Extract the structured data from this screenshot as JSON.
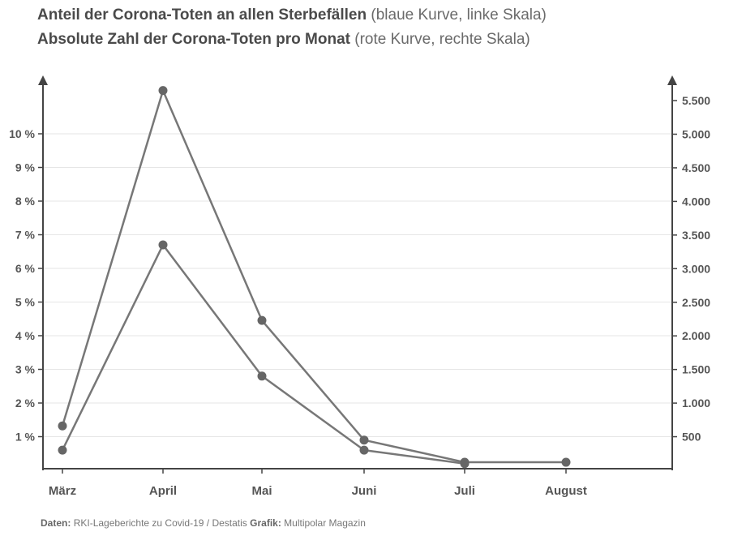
{
  "title": {
    "line1_bold": "Anteil der Corona-Toten an allen Sterbefällen",
    "line1_note": "(blaue Kurve, linke Skala)",
    "line2_bold": "Absolute Zahl der Corona-Toten pro Monat",
    "line2_note": "(rote Kurve, rechte Skala)"
  },
  "footer": {
    "data_label": "Daten:",
    "data_value": "RKI-Lageberichte zu Covid-19 / Destatis",
    "graphic_label": "Grafik:",
    "graphic_value": "Multipolar Magazin"
  },
  "colors": {
    "line": "#777777",
    "marker": "#666666",
    "grid": "#e6e6e6",
    "axis": "#444444"
  },
  "chart_data": {
    "type": "line",
    "categories": [
      "März",
      "April",
      "Mai",
      "Juni",
      "Juli",
      "August"
    ],
    "left_axis": {
      "ylim": [
        0,
        11.5
      ],
      "ticks": [
        1,
        2,
        3,
        4,
        5,
        6,
        7,
        8,
        9,
        10
      ],
      "tick_labels": [
        "1 %",
        "2 %",
        "3 %",
        "4 %",
        "5 %",
        "6 %",
        "7 %",
        "8 %",
        "9 %",
        "10 %"
      ]
    },
    "right_axis": {
      "ylim": [
        0,
        5750
      ],
      "ticks": [
        500,
        1000,
        1500,
        2000,
        2500,
        3000,
        3500,
        4000,
        4500,
        5000,
        5500
      ],
      "tick_labels": [
        "500",
        "1.000",
        "1.500",
        "2.000",
        "2.500",
        "3.000",
        "3.500",
        "4.000",
        "4.500",
        "5.000",
        "5.500"
      ]
    },
    "series": [
      {
        "axis": "left",
        "values": [
          0.6,
          6.7,
          2.8,
          0.6,
          0.2,
          null
        ]
      },
      {
        "axis": "right",
        "values": [
          660,
          5650,
          2230,
          450,
          120,
          120
        ]
      }
    ],
    "grid": true
  }
}
